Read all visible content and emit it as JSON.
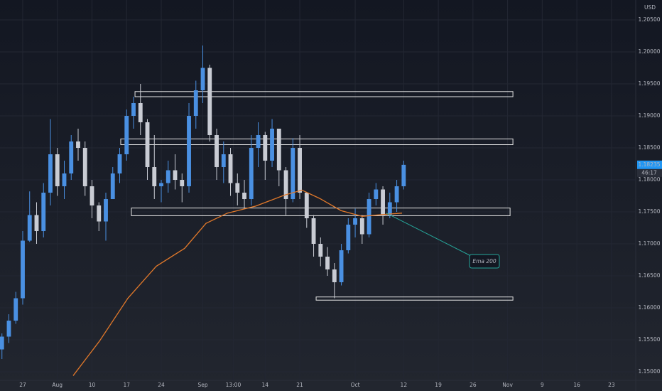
{
  "chart_data": {
    "type": "candlestick",
    "currency": "USD",
    "countdown": "46:17",
    "last_price_label": "1.18235",
    "up_color": "#4a90e2",
    "down_color": "#c9ccd4",
    "grid": true,
    "ylim": [
      1.14867,
      1.20811
    ],
    "xlim": [
      -3.28,
      88.5
    ],
    "yticks": [
      {
        "value": 1.15,
        "label": "1.15000"
      },
      {
        "value": 1.155,
        "label": "1.15500"
      },
      {
        "value": 1.16,
        "label": "1.16000"
      },
      {
        "value": 1.165,
        "label": "1.16500"
      },
      {
        "value": 1.17,
        "label": "1.17000"
      },
      {
        "value": 1.175,
        "label": "1.17500"
      },
      {
        "value": 1.18,
        "label": "1.18000"
      },
      {
        "value": 1.185,
        "label": "1.18500"
      },
      {
        "value": 1.19,
        "label": "1.19000"
      },
      {
        "value": 1.195,
        "label": "1.19500"
      },
      {
        "value": 1.2,
        "label": "1.20000"
      },
      {
        "value": 1.205,
        "label": "1.20500"
      }
    ],
    "xticks": [
      {
        "value": 0,
        "label": "27"
      },
      {
        "value": 5,
        "label": "Aug"
      },
      {
        "value": 10,
        "label": "10"
      },
      {
        "value": 15,
        "label": "17"
      },
      {
        "value": 20,
        "label": "24"
      },
      {
        "value": 26,
        "label": "Sep"
      },
      {
        "value": 30.4,
        "label": "13:00"
      },
      {
        "value": 35,
        "label": "14"
      },
      {
        "value": 40,
        "label": "21"
      },
      {
        "value": 48,
        "label": "Oct"
      },
      {
        "value": 55,
        "label": "12"
      },
      {
        "value": 60,
        "label": "19"
      },
      {
        "value": 65,
        "label": "26"
      },
      {
        "value": 70,
        "label": "Nov"
      },
      {
        "value": 75,
        "label": "9"
      },
      {
        "value": 80,
        "label": "16"
      },
      {
        "value": 85,
        "label": "23"
      }
    ],
    "x": [
      -3,
      -2,
      -1,
      0,
      1,
      2,
      3,
      4,
      5,
      6,
      7,
      8,
      9,
      10,
      11,
      12,
      13,
      14,
      15,
      16,
      17,
      18,
      19,
      20,
      21,
      22,
      23,
      24,
      25,
      26,
      27,
      28,
      29,
      30,
      31,
      32,
      33,
      34,
      35,
      36,
      37,
      38,
      39,
      40,
      41,
      42,
      43,
      44,
      45,
      46,
      47,
      48,
      49,
      50,
      51,
      52,
      53,
      54,
      55
    ],
    "open": [
      1.1535,
      1.1555,
      1.158,
      1.1615,
      1.1705,
      1.1745,
      1.172,
      1.178,
      1.184,
      1.179,
      1.181,
      1.186,
      1.185,
      1.179,
      1.176,
      1.1735,
      1.177,
      1.181,
      1.184,
      1.19,
      1.192,
      1.189,
      1.182,
      1.179,
      1.1795,
      1.1815,
      1.18,
      1.179,
      1.19,
      1.194,
      1.1975,
      1.187,
      1.182,
      1.184,
      1.1795,
      1.178,
      1.177,
      1.185,
      1.187,
      1.183,
      1.188,
      1.1815,
      1.177,
      1.185,
      1.178,
      1.174,
      1.17,
      1.168,
      1.166,
      1.164,
      1.169,
      1.173,
      1.174,
      1.1715,
      1.177,
      1.1785,
      1.1745,
      1.1765,
      1.179
    ],
    "high": [
      1.156,
      1.159,
      1.1625,
      1.172,
      1.1782,
      1.1765,
      1.1795,
      1.1895,
      1.185,
      1.183,
      1.187,
      1.188,
      1.186,
      1.18,
      1.1765,
      1.178,
      1.182,
      1.185,
      1.191,
      1.193,
      1.195,
      1.1895,
      1.187,
      1.18,
      1.183,
      1.184,
      1.181,
      1.192,
      1.1955,
      1.201,
      1.198,
      1.188,
      1.186,
      1.185,
      1.181,
      1.18,
      1.187,
      1.189,
      1.1875,
      1.1895,
      1.188,
      1.182,
      1.1865,
      1.187,
      1.178,
      1.1745,
      1.171,
      1.1695,
      1.167,
      1.17,
      1.174,
      1.1755,
      1.1745,
      1.178,
      1.1795,
      1.179,
      1.178,
      1.18,
      1.183
    ],
    "low": [
      1.152,
      1.1545,
      1.1575,
      1.1605,
      1.1703,
      1.17,
      1.171,
      1.176,
      1.1775,
      1.177,
      1.18,
      1.183,
      1.1775,
      1.174,
      1.172,
      1.1705,
      1.177,
      1.1795,
      1.183,
      1.188,
      1.187,
      1.18,
      1.177,
      1.1765,
      1.178,
      1.1785,
      1.1765,
      1.178,
      1.188,
      1.192,
      1.186,
      1.18,
      1.1795,
      1.1775,
      1.176,
      1.1755,
      1.176,
      1.182,
      1.18,
      1.182,
      1.179,
      1.1745,
      1.1765,
      1.177,
      1.1725,
      1.168,
      1.1665,
      1.165,
      1.1615,
      1.1635,
      1.1685,
      1.171,
      1.17,
      1.171,
      1.176,
      1.173,
      1.174,
      1.175,
      1.1785
    ],
    "close": [
      1.1555,
      1.158,
      1.1615,
      1.1705,
      1.1745,
      1.172,
      1.178,
      1.184,
      1.179,
      1.181,
      1.186,
      1.185,
      1.179,
      1.176,
      1.1735,
      1.177,
      1.181,
      1.184,
      1.19,
      1.192,
      1.189,
      1.182,
      1.179,
      1.1795,
      1.1815,
      1.18,
      1.179,
      1.19,
      1.194,
      1.1975,
      1.187,
      1.182,
      1.184,
      1.1795,
      1.178,
      1.177,
      1.185,
      1.187,
      1.183,
      1.188,
      1.1815,
      1.177,
      1.185,
      1.178,
      1.174,
      1.17,
      1.168,
      1.166,
      1.164,
      1.169,
      1.173,
      1.174,
      1.1715,
      1.177,
      1.1785,
      1.1745,
      1.1765,
      1.179,
      1.18235
    ],
    "ema": {
      "color": "#e0782a",
      "x": [
        7.28,
        11.08,
        15.18,
        19.28,
        23.38,
        26.46,
        29.54,
        33.64,
        37.74,
        40.31,
        42.87,
        45.95,
        49.03,
        52.1,
        54.77
      ],
      "values": [
        1.1494,
        1.1548,
        1.1615,
        1.1665,
        1.1693,
        1.1732,
        1.1748,
        1.1759,
        1.1776,
        1.1784,
        1.1771,
        1.1752,
        1.1743,
        1.1746,
        1.1748
      ]
    },
    "zones": [
      {
        "x": [
          16.21,
          70.77
        ],
        "y": [
          1.193,
          1.1938
        ]
      },
      {
        "x": [
          14.15,
          70.77
        ],
        "y": [
          1.1855,
          1.1864
        ]
      },
      {
        "x": [
          15.69,
          70.36
        ],
        "y": [
          1.1744,
          1.1756
        ]
      },
      {
        "x": [
          42.36,
          70.77
        ],
        "y": [
          1.1612,
          1.1617
        ]
      }
    ],
    "annotation": {
      "text": "Ema 200",
      "x": 52.5,
      "y": 1.1748
    }
  }
}
